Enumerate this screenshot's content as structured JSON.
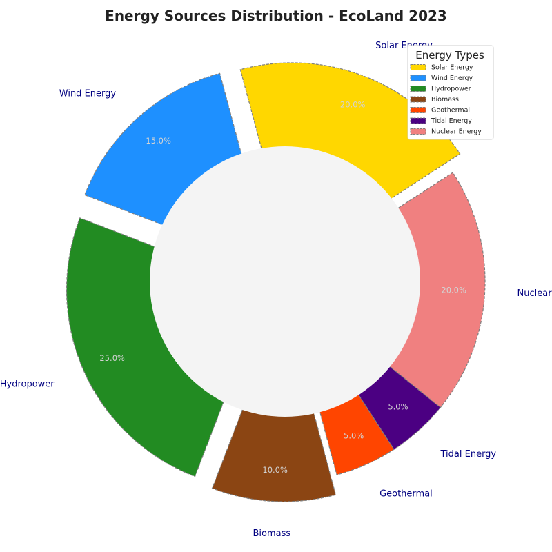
{
  "chart_data": {
    "type": "pie",
    "style": "donut",
    "title": "Energy Sources Distribution - EcoLand 2023",
    "categories": [
      "Solar Energy",
      "Wind Energy",
      "Hydropower",
      "Biomass",
      "Geothermal",
      "Tidal Energy",
      "Nuclear Energy"
    ],
    "values": [
      20,
      15,
      25,
      10,
      5,
      5,
      20
    ],
    "percent_labels": [
      "20.0%",
      "15.0%",
      "25.0%",
      "10.0%",
      "5.0%",
      "5.0%",
      "20.0%"
    ],
    "colors": [
      "#FFD700",
      "#1E90FF",
      "#228B22",
      "#8B4513",
      "#FF4500",
      "#4B0082",
      "#F08080"
    ],
    "exploded": [
      true,
      true,
      true,
      true,
      false,
      false,
      false
    ],
    "legend": {
      "title": "Energy Types",
      "placement": "top-right",
      "entries": [
        "Solar Energy",
        "Wind Energy",
        "Hydropower",
        "Biomass",
        "Geothermal",
        "Tidal Energy",
        "Nuclear Energy"
      ]
    },
    "center_color": "#f4f4f4",
    "label_color": "#000080",
    "percent_color": "#d3d3d3",
    "edge_color": "#808080"
  }
}
